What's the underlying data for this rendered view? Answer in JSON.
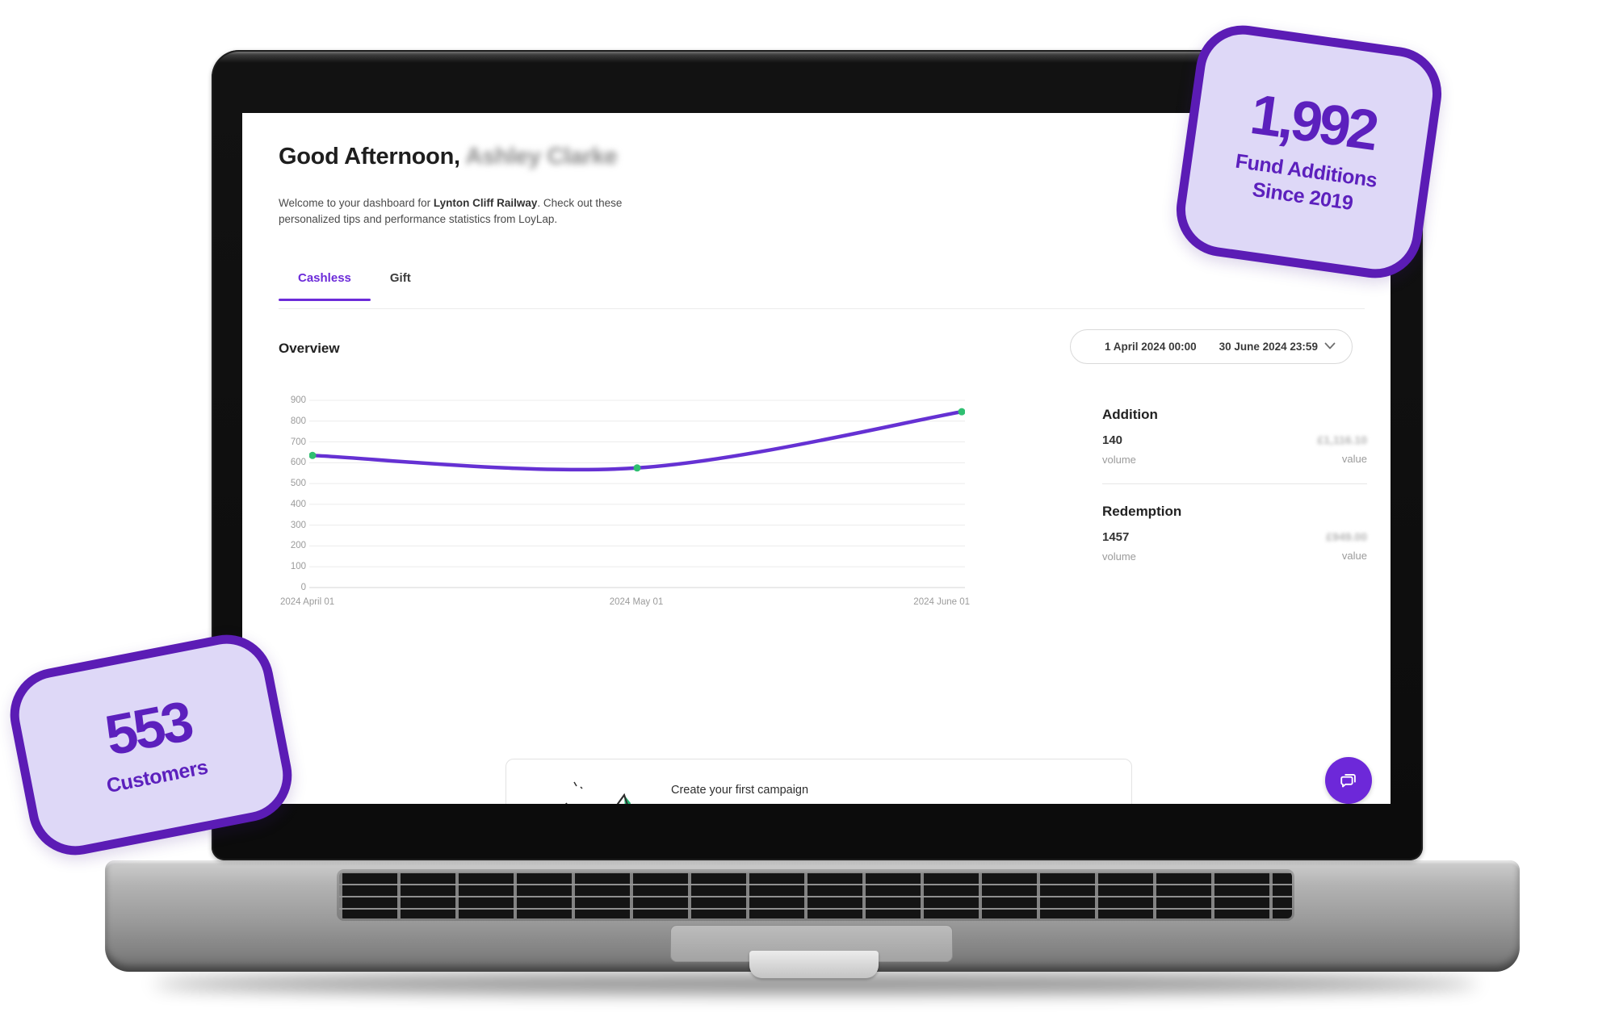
{
  "header": {
    "greeting": "Good Afternoon,",
    "user_name": "Ashley Clarke",
    "welcome_pre": "Welcome to your dashboard for ",
    "company": "Lynton Cliff Railway",
    "welcome_post": ". Check out these personalized tips and performance statistics from LoyLap."
  },
  "tabs": [
    {
      "label": "Cashless",
      "active": true
    },
    {
      "label": "Gift",
      "active": false
    }
  ],
  "overview": {
    "title": "Overview",
    "date_start": "1 April 2024 00:00",
    "date_end": "30 June 2024 23:59"
  },
  "chart_data": {
    "type": "line",
    "x_labels": [
      "2024 April 01",
      "2024 May 01",
      "2024 June 01"
    ],
    "values": [
      635,
      575,
      845
    ],
    "ylim": [
      0,
      900
    ],
    "y_ticks": [
      0,
      100,
      200,
      300,
      400,
      500,
      600,
      700,
      800,
      900
    ],
    "grid": true,
    "legend": "none",
    "line_color": "#6531d3",
    "point_color": "#2fbf71"
  },
  "stats": {
    "addition": {
      "title": "Addition",
      "volume": "140",
      "volume_label": "volume",
      "value": "£1,116.10",
      "value_label": "value"
    },
    "redemption": {
      "title": "Redemption",
      "volume": "1457",
      "volume_label": "volume",
      "value": "£949.00",
      "value_label": "value"
    }
  },
  "campaign": {
    "title": "Create your first campaign"
  },
  "badges": {
    "fund": {
      "number": "1,992",
      "line1": "Fund Additions",
      "line2": "Since 2019"
    },
    "customers": {
      "number": "553",
      "line1": "Customers"
    }
  },
  "colors": {
    "accent": "#6c2bd9",
    "badge_border": "#5b1cb5",
    "badge_fill": "#ded8f7",
    "chart_line": "#6531d3",
    "chart_point": "#2fbf71"
  }
}
